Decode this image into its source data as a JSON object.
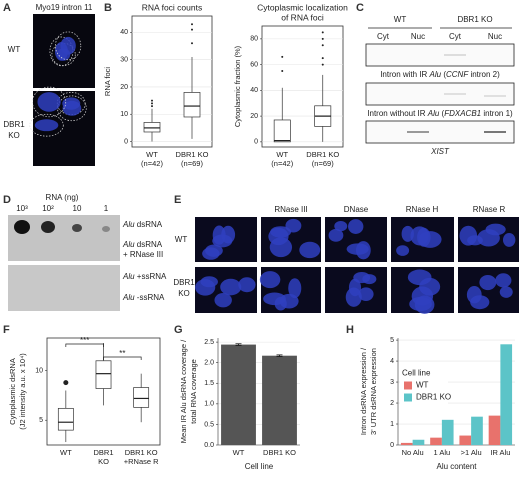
{
  "panel_labels": [
    "A",
    "B",
    "C",
    "D",
    "E",
    "F",
    "G",
    "H"
  ],
  "panel_a": {
    "title": "Myo19 intron 11",
    "rows": [
      [
        "WT"
      ],
      [
        "DBR1",
        "KO"
      ]
    ]
  },
  "panel_c": {
    "groups": [
      "WT",
      "DBR1 KO"
    ],
    "fractions": [
      "Cyt",
      "Nuc",
      "Cyt",
      "Nuc"
    ],
    "blots": [
      [
        "Intron with IR ",
        "Alu",
        " (",
        "CCNF",
        " intron 2)"
      ],
      [
        "Intron without IR ",
        "Alu",
        " (",
        "FDXACB1",
        " intron 1)"
      ],
      [
        "XIST"
      ]
    ]
  },
  "panel_d": {
    "axis_title": "RNA (ng)",
    "amounts": [
      "10³",
      "10²",
      "10",
      "1"
    ],
    "rows": [
      [
        "Alu",
        " dsRNA"
      ],
      [
        "Alu",
        " dsRNA"
      ],
      [
        "+ RNase III"
      ],
      [
        "Alu",
        " +ssRNA"
      ],
      [
        "Alu",
        " -ssRNA"
      ]
    ]
  },
  "panel_e": {
    "treatments": [
      "RNase III",
      "DNase",
      "RNase H",
      "RNase R"
    ],
    "rows": [
      [
        "WT"
      ],
      [
        "DBR1",
        "KO"
      ]
    ]
  },
  "chart_data": [
    {
      "type": "box",
      "title": [
        "RNA foci counts"
      ],
      "y_label": [
        "RNA foci"
      ],
      "categories": [
        [
          "WT",
          "(n=42)"
        ],
        [
          "DBR1 KO",
          "(n=69)"
        ]
      ],
      "boxes": [
        {
          "min": 0,
          "q1": 3.5,
          "median": 5,
          "q3": 7,
          "max": 12,
          "outliers": [
            13,
            14,
            15
          ]
        },
        {
          "min": 1,
          "q1": 9,
          "median": 13,
          "q3": 18,
          "max": 31,
          "outliers": [
            36,
            41,
            43
          ]
        }
      ],
      "ylim": [
        -2,
        46
      ],
      "yticks": [
        0,
        10,
        20,
        30,
        40
      ],
      "grid": true,
      "color": "#ffffff"
    },
    {
      "type": "box",
      "title": [
        "Cytoplasmic localization",
        "of RNA foci"
      ],
      "y_label": [
        "Cytoplasmic fraction (%)"
      ],
      "categories": [
        [
          "WT",
          "(n=42)"
        ],
        [
          "DBR1 KO",
          "(n=69)"
        ]
      ],
      "boxes": [
        {
          "min": 0,
          "q1": 0,
          "median": 1,
          "q3": 17,
          "max": 42,
          "outliers": [
            55,
            66
          ]
        },
        {
          "min": 0,
          "q1": 12,
          "median": 20,
          "q3": 28,
          "max": 52,
          "outliers": [
            60,
            65,
            75,
            80,
            85
          ]
        }
      ],
      "ylim": [
        -4,
        90
      ],
      "yticks": [
        0,
        20,
        40,
        60,
        80
      ],
      "grid": true,
      "color": "#ffffff"
    },
    {
      "type": "box",
      "y_label": [
        "Cytoplasmic dsRNA",
        "(J2 intensity a.u. x 10⁴)"
      ],
      "categories": [
        [
          "WT"
        ],
        [
          "DBR1",
          "KO"
        ],
        [
          "DBR1 KO",
          "+RNase R"
        ]
      ],
      "boxes": [
        {
          "min": 2.8,
          "q1": 4,
          "median": 4.8,
          "q3": 6.2,
          "max": 8,
          "outliers": [
            8.8
          ]
        },
        {
          "min": 6.5,
          "q1": 8.2,
          "median": 9.7,
          "q3": 11,
          "max": 12.8,
          "outliers": []
        },
        {
          "min": 4.8,
          "q1": 6.3,
          "median": 7.2,
          "q3": 8.3,
          "max": 9.7,
          "outliers": []
        }
      ],
      "annotations": [
        "***",
        "**"
      ],
      "ylim": [
        2.5,
        13.3
      ],
      "yticks": [
        5,
        10
      ],
      "grid": false,
      "color": "#ffffff"
    },
    {
      "type": "bar",
      "y_label": [
        "Mean IR Alu dsRNA coverage /",
        "total RNA coverage"
      ],
      "x_label": "Cell line",
      "categories": [
        [
          "WT"
        ],
        [
          "DBR1 KO"
        ]
      ],
      "series": [
        {
          "name": null,
          "color": "#555555",
          "values": [
            2.44,
            2.17
          ],
          "errors": [
            0.02,
            0.02
          ]
        }
      ],
      "ylim": [
        0,
        2.6
      ],
      "yticks": [
        {
          "value": 0,
          "label": "0.0"
        },
        0.5,
        {
          "value": 1,
          "label": "1.0"
        },
        1.5,
        {
          "value": 2,
          "label": "2.0"
        },
        2.5
      ],
      "grid": true
    },
    {
      "type": "bar",
      "y_label": [
        "Intron dsRNA expression /",
        "3' UTR dsRNA expression"
      ],
      "x_label": "Alu content",
      "categories": [
        [
          "No Alu"
        ],
        [
          "1 Alu"
        ],
        [
          ">1 Alu"
        ],
        [
          "IR Alu"
        ]
      ],
      "legend_title": "Cell line",
      "legend_position": "left",
      "series": [
        {
          "name": "WT",
          "color": "#e8726c",
          "values": [
            0.1,
            0.35,
            0.45,
            1.4
          ]
        },
        {
          "name": "DBR1 KO",
          "color": "#5cc4c8",
          "values": [
            0.25,
            1.2,
            1.35,
            4.8
          ]
        }
      ],
      "ylim": [
        0,
        5.1
      ],
      "yticks": [
        0,
        1,
        2,
        3,
        4,
        5
      ],
      "grid": true
    }
  ]
}
